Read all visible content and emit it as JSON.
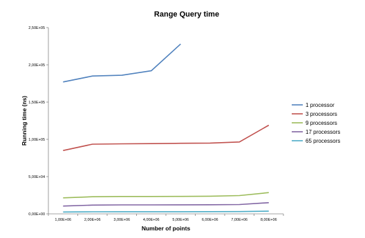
{
  "chart_data": {
    "type": "line",
    "title": "Range Query time",
    "xlabel": "Number of points",
    "ylabel": "Running time (ns)",
    "categories": [
      "1,00E+06",
      "2,00E+06",
      "3,00E+06",
      "4,00E+06",
      "5,00E+06",
      "6,00E+06",
      "7,00E+06",
      "8,00E+06"
    ],
    "y_ticks": [
      "0,00E+00",
      "5,00E+04",
      "1,00E+05",
      "1,50E+05",
      "2,00E+05",
      "2,50E+05"
    ],
    "ylim": [
      0,
      250000
    ],
    "grid": false,
    "legend_position": "right",
    "series": [
      {
        "name": "1 processor",
        "color": "#4f81bd",
        "values": [
          177000,
          185000,
          186000,
          192000,
          228000,
          null,
          null,
          null
        ]
      },
      {
        "name": "3 processors",
        "color": "#c0504d",
        "values": [
          85000,
          93500,
          94000,
          94300,
          94700,
          95000,
          96500,
          119000
        ]
      },
      {
        "name": "9 processors",
        "color": "#9bbb59",
        "values": [
          21500,
          23000,
          23300,
          23300,
          23400,
          23700,
          24500,
          28500
        ]
      },
      {
        "name": "17 processors",
        "color": "#8064a2",
        "values": [
          10500,
          11800,
          12000,
          12000,
          12100,
          12200,
          12500,
          15000
        ]
      },
      {
        "name": "65 processors",
        "color": "#4bacc6",
        "values": [
          2500,
          2800,
          2900,
          2900,
          2900,
          3000,
          3100,
          3600
        ]
      }
    ]
  }
}
